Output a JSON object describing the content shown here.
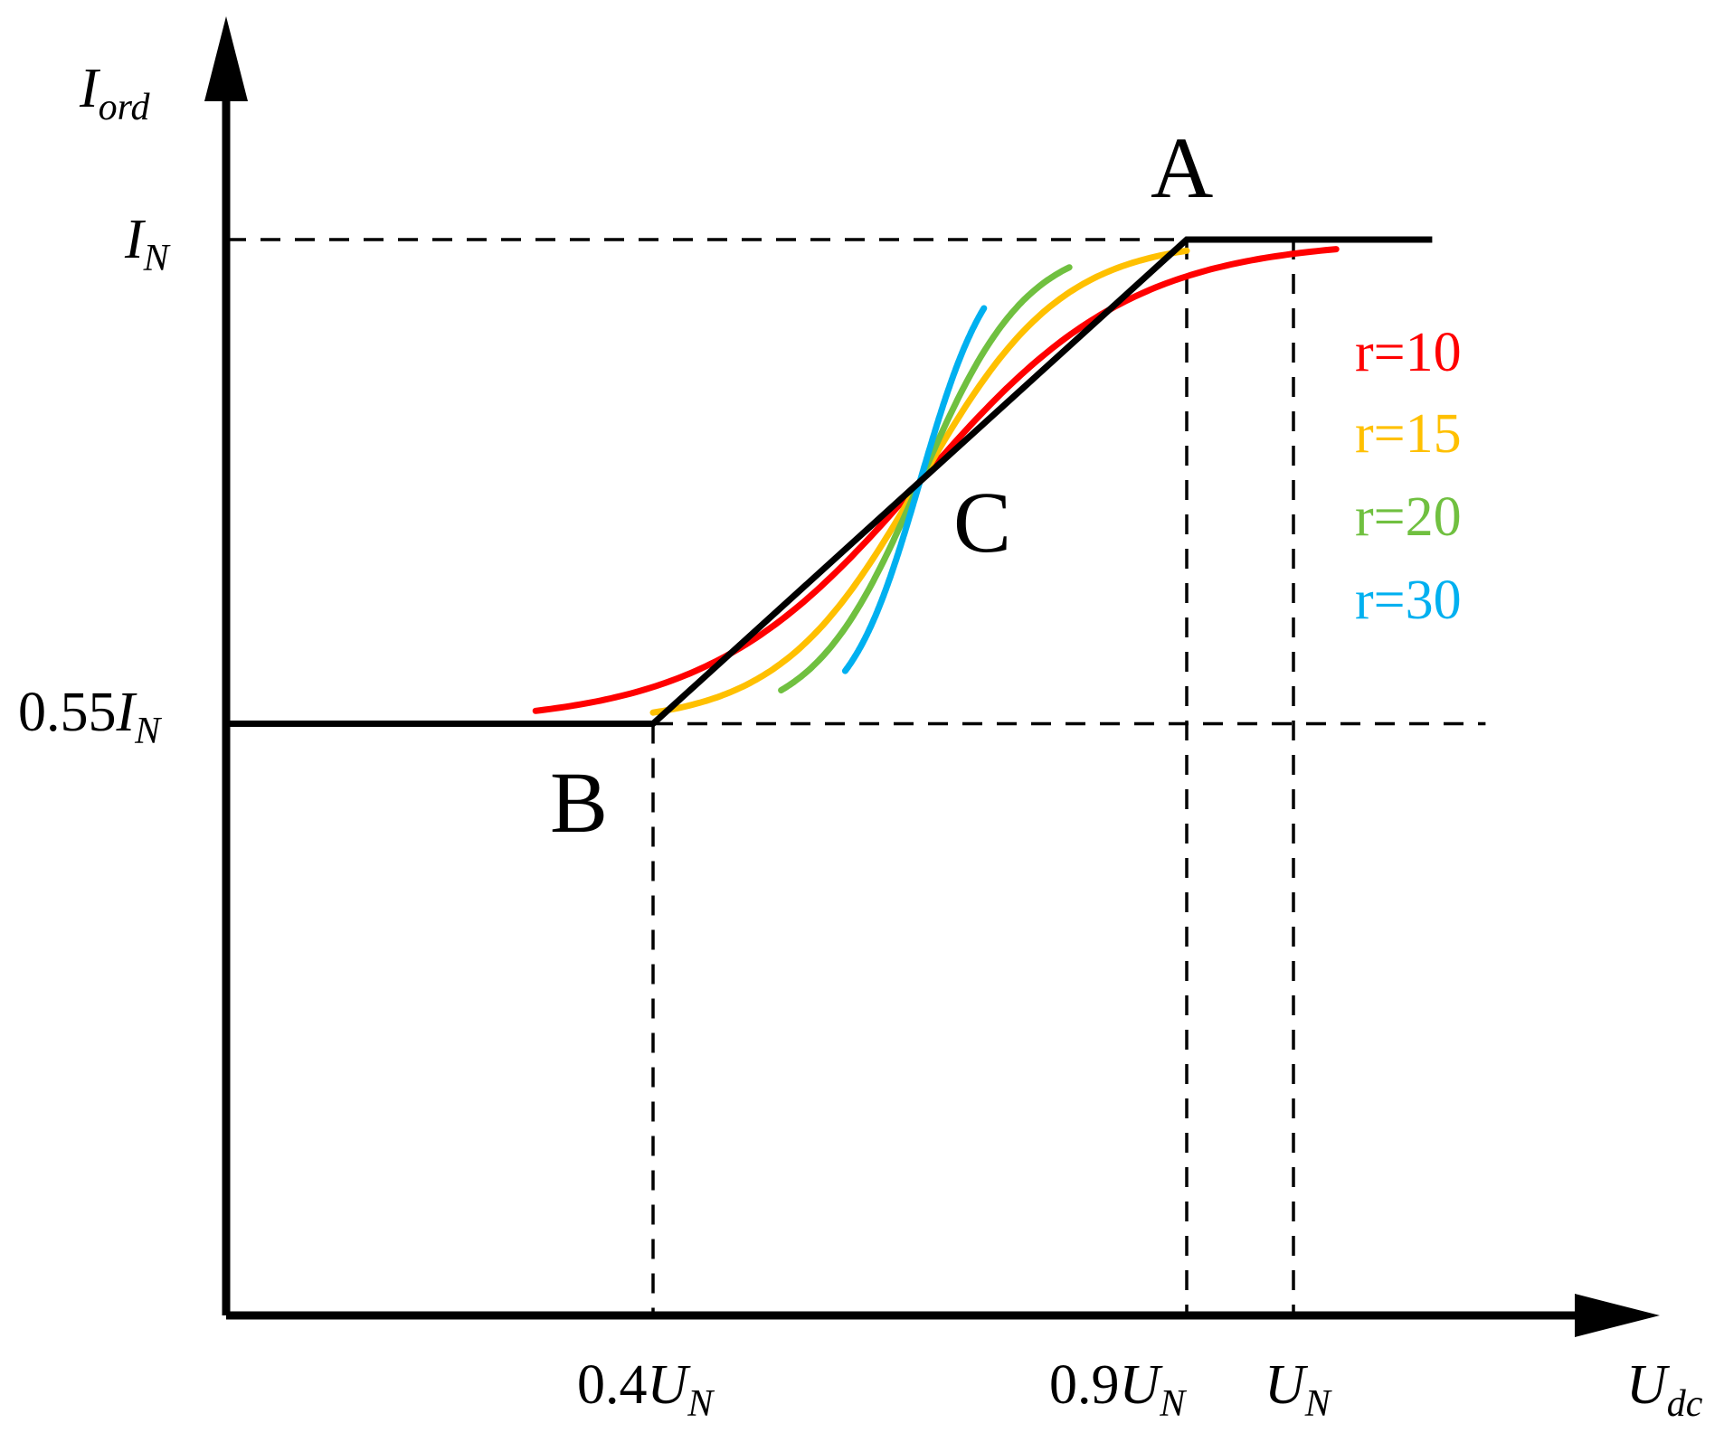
{
  "chart_data": {
    "type": "line",
    "title": "",
    "xlabel": {
      "base": "U",
      "sub": "dc"
    },
    "ylabel": {
      "base": "I",
      "sub": "ord"
    },
    "x_ticks": [
      {
        "pre": "0.4",
        "base": "U",
        "sub": "N",
        "x": 0.4
      },
      {
        "pre": "0.9",
        "base": "U",
        "sub": "N",
        "x": 0.9
      },
      {
        "pre": "",
        "base": "U",
        "sub": "N",
        "x": 1.0
      }
    ],
    "y_ticks": [
      {
        "pre": "",
        "base": "I",
        "sub": "N",
        "y": 1.0
      },
      {
        "pre": "0.55",
        "base": "I",
        "sub": "N",
        "y": 0.55
      }
    ],
    "xlim": [
      0,
      1.33
    ],
    "ylim": [
      0,
      1.0
    ],
    "grid": false,
    "legend_position": "right",
    "points": [
      {
        "label": "A",
        "x": 0.9,
        "y": 1.0
      },
      {
        "label": "B",
        "x": 0.4,
        "y": 0.55
      },
      {
        "label": "C",
        "x": 0.65,
        "y": 0.775
      }
    ],
    "piecewise_characteristic": {
      "color": "#000000",
      "x": [
        0.0,
        0.4,
        0.9,
        1.13
      ],
      "y": [
        0.55,
        0.55,
        1.0,
        1.0
      ]
    },
    "series": [
      {
        "name": "r=10",
        "color": "#ff0000",
        "r": 10,
        "x_range": [
          0.29,
          1.04
        ]
      },
      {
        "name": "r=15",
        "color": "#ffc000",
        "r": 15,
        "x_range": [
          0.4,
          0.9
        ]
      },
      {
        "name": "r=20",
        "color": "#70c040",
        "r": 20,
        "x_range": [
          0.52,
          0.79
        ]
      },
      {
        "name": "r=30",
        "color": "#00b0f0",
        "r": 30,
        "x_range": [
          0.58,
          0.71
        ]
      }
    ]
  }
}
